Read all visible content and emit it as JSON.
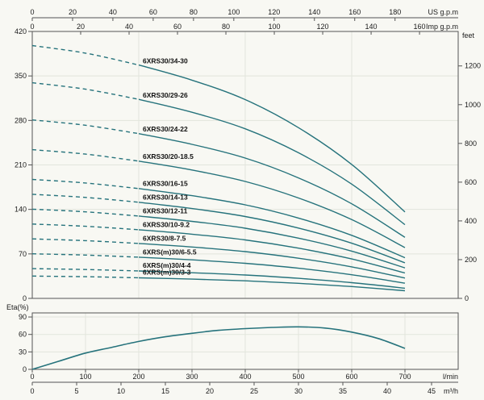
{
  "page": {
    "background": "#f8f8f3",
    "curve_color": "#26737c",
    "grid_color": "#e2e5dc",
    "border_color": "#555555",
    "text_color": "#1b1b1b"
  },
  "chart_data": [
    {
      "type": "line",
      "name": "pump-head-curves",
      "x_lmin": [
        0,
        100,
        200,
        300,
        400,
        500,
        600,
        700
      ],
      "x_range_lmin": [
        0,
        800
      ],
      "dashed_below_lmin": 200,
      "grid_x_lmin": [
        200,
        400,
        600
      ],
      "y_left": {
        "unit": "m",
        "range": [
          0,
          420
        ],
        "ticks": [
          0,
          70,
          140,
          210,
          280,
          350,
          420
        ]
      },
      "y_right": {
        "unit": "feet",
        "ticks": [
          0,
          200,
          400,
          600,
          800,
          1000,
          1200
        ]
      },
      "x_top_us": {
        "unit": "US g.p.m",
        "ticks": [
          0,
          20,
          40,
          60,
          80,
          100,
          120,
          140,
          160,
          180
        ]
      },
      "x_top_imp": {
        "unit": "Imp g.p.m",
        "ticks": [
          0,
          20,
          40,
          60,
          80,
          100,
          120,
          140,
          160
        ]
      },
      "series": [
        {
          "label": "6XRS30/34-30",
          "stages": 34,
          "head_m": [
            397.8,
            385.9,
            367.2,
            343.4,
            312.8,
            268.6,
            210.8,
            136.0
          ]
        },
        {
          "label": "6XRS30/29-26",
          "stages": 29,
          "head_m": [
            339.3,
            329.2,
            313.2,
            292.9,
            266.8,
            229.1,
            179.8,
            116.0
          ]
        },
        {
          "label": "6XRS30/24-22",
          "stages": 24,
          "head_m": [
            280.8,
            272.4,
            259.2,
            242.4,
            220.8,
            189.6,
            148.8,
            96.0
          ]
        },
        {
          "label": "6XRS30/20-18.5",
          "stages": 20,
          "head_m": [
            234.0,
            227.0,
            216.0,
            202.0,
            184.0,
            158.0,
            124.0,
            80.0
          ]
        },
        {
          "label": "6XRS30/16-15",
          "stages": 16,
          "head_m": [
            187.2,
            181.6,
            172.8,
            161.6,
            147.2,
            126.4,
            99.2,
            64.0
          ]
        },
        {
          "label": "6XRS30/14-13",
          "stages": 14,
          "head_m": [
            163.8,
            158.9,
            151.2,
            141.4,
            128.8,
            110.6,
            86.8,
            56.0
          ]
        },
        {
          "label": "6XRS30/12-11",
          "stages": 12,
          "head_m": [
            140.4,
            136.2,
            129.6,
            121.2,
            110.4,
            94.8,
            74.4,
            48.0
          ]
        },
        {
          "label": "6XRS30/10-9.2",
          "stages": 10,
          "head_m": [
            117.0,
            113.5,
            108.0,
            101.0,
            92.0,
            79.0,
            62.0,
            40.0
          ]
        },
        {
          "label": "6XRS30/8-7.5",
          "stages": 8,
          "head_m": [
            93.6,
            90.8,
            86.4,
            80.8,
            73.6,
            63.2,
            49.6,
            32.0
          ]
        },
        {
          "label": "6XRS(m)30/6-5.5",
          "stages": 6,
          "head_m": [
            70.2,
            68.1,
            64.8,
            60.6,
            55.2,
            47.4,
            37.2,
            24.0
          ]
        },
        {
          "label": "6XRS(m)30/4-4",
          "stages": 4,
          "head_m": [
            46.8,
            45.4,
            43.2,
            40.4,
            36.8,
            31.6,
            24.8,
            16.0
          ]
        },
        {
          "label": "6XRS(m)30/3-3",
          "stages": 3,
          "head_m": [
            35.1,
            34.1,
            32.4,
            30.3,
            27.6,
            23.7,
            18.6,
            12.0
          ]
        }
      ]
    },
    {
      "type": "line",
      "name": "pump-efficiency-curve",
      "ylabel": "Eta(%)",
      "y_ticks": [
        0,
        30,
        60,
        90
      ],
      "y_max_pct": 97,
      "x_lmin": [
        0,
        50,
        100,
        150,
        200,
        250,
        300,
        350,
        400,
        450,
        500,
        550,
        600,
        650,
        700
      ],
      "eta_pct": [
        0,
        14,
        28,
        38,
        48,
        56,
        62,
        67,
        70,
        72,
        73,
        71,
        64,
        53,
        36
      ],
      "grid_x_lmin": [
        100,
        200,
        300,
        400,
        500,
        600,
        700
      ],
      "x_bottom_lmin": {
        "unit": "l/min",
        "ticks": [
          0,
          100,
          200,
          300,
          400,
          500,
          600,
          700
        ]
      },
      "x_bottom_m3h": {
        "unit": "m³/h",
        "ticks": [
          0,
          5,
          10,
          15,
          20,
          25,
          30,
          35,
          40,
          45
        ]
      }
    }
  ]
}
